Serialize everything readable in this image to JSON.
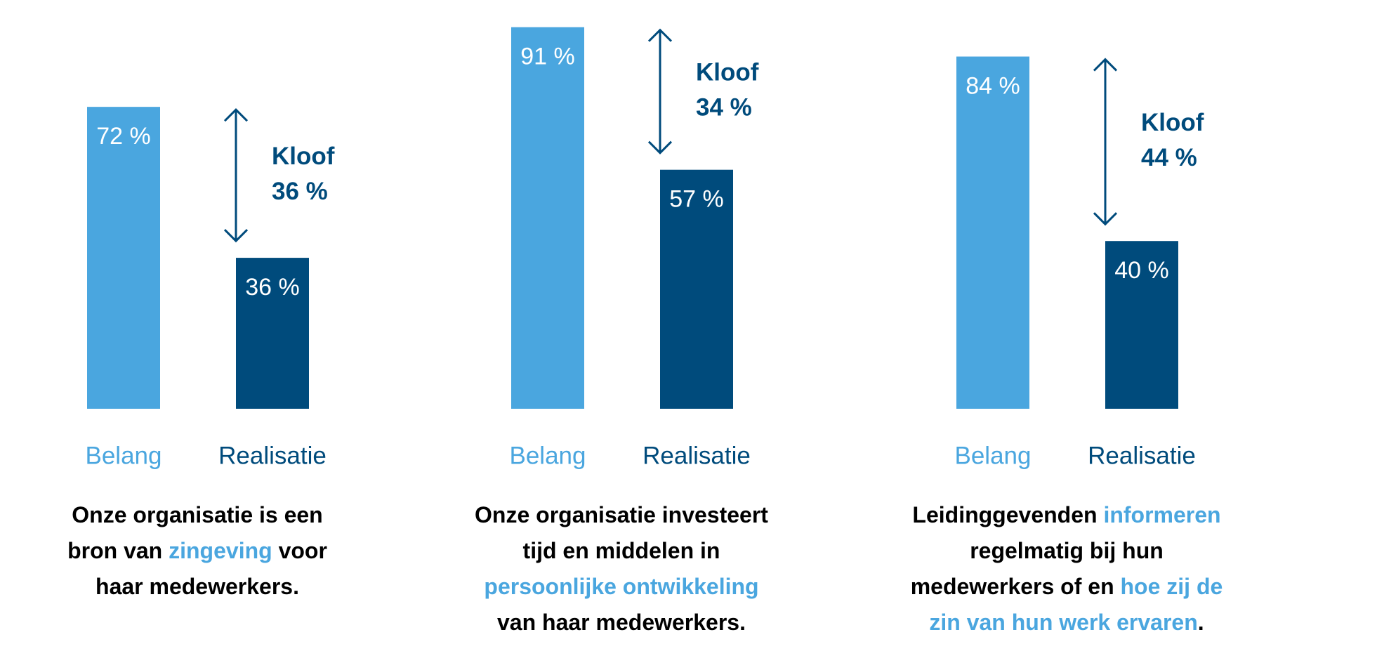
{
  "chart_data": [
    {
      "type": "bar",
      "categories": [
        "Belang",
        "Realisatie"
      ],
      "values": [
        72,
        36
      ],
      "value_labels": [
        "72 %",
        "36 %"
      ],
      "colors": [
        "#4aa6df",
        "#004b7c"
      ],
      "annotation": {
        "label": "Kloof",
        "value": 36,
        "value_label": "36 %",
        "color": "#004b7c"
      },
      "caption": [
        [
          {
            "text": "Onze organisatie is een",
            "color": "#000000"
          }
        ],
        [
          {
            "text": "bron van ",
            "color": "#000000"
          },
          {
            "text": "zingeving",
            "color": "#4aa6df"
          },
          {
            "text": " voor",
            "color": "#000000"
          }
        ],
        [
          {
            "text": "haar medewerkers.",
            "color": "#000000"
          }
        ]
      ]
    },
    {
      "type": "bar",
      "categories": [
        "Belang",
        "Realisatie"
      ],
      "values": [
        91,
        57
      ],
      "value_labels": [
        "91 %",
        "57 %"
      ],
      "colors": [
        "#4aa6df",
        "#004b7c"
      ],
      "annotation": {
        "label": "Kloof",
        "value": 34,
        "value_label": "34 %",
        "color": "#004b7c"
      },
      "caption": [
        [
          {
            "text": "Onze organisatie investeert",
            "color": "#000000"
          }
        ],
        [
          {
            "text": "tijd en middelen in",
            "color": "#000000"
          }
        ],
        [
          {
            "text": "persoonlijke ontwikkeling",
            "color": "#4aa6df"
          }
        ],
        [
          {
            "text": "van haar medewerkers.",
            "color": "#000000"
          }
        ]
      ]
    },
    {
      "type": "bar",
      "categories": [
        "Belang",
        "Realisatie"
      ],
      "values": [
        84,
        40
      ],
      "value_labels": [
        "84 %",
        "40 %"
      ],
      "colors": [
        "#4aa6df",
        "#004b7c"
      ],
      "annotation": {
        "label": "Kloof",
        "value": 44,
        "value_label": "44 %",
        "color": "#004b7c"
      },
      "caption": [
        [
          {
            "text": "Leidinggevenden ",
            "color": "#000000"
          },
          {
            "text": "informeren",
            "color": "#4aa6df"
          }
        ],
        [
          {
            "text": "regelmatig bij hun",
            "color": "#000000"
          }
        ],
        [
          {
            "text": "medewerkers of en ",
            "color": "#000000"
          },
          {
            "text": "hoe zij de",
            "color": "#4aa6df"
          }
        ],
        [
          {
            "text": "zin van hun werk ervaren",
            "color": "#4aa6df"
          },
          {
            "text": ".",
            "color": "#000000"
          }
        ]
      ]
    }
  ]
}
